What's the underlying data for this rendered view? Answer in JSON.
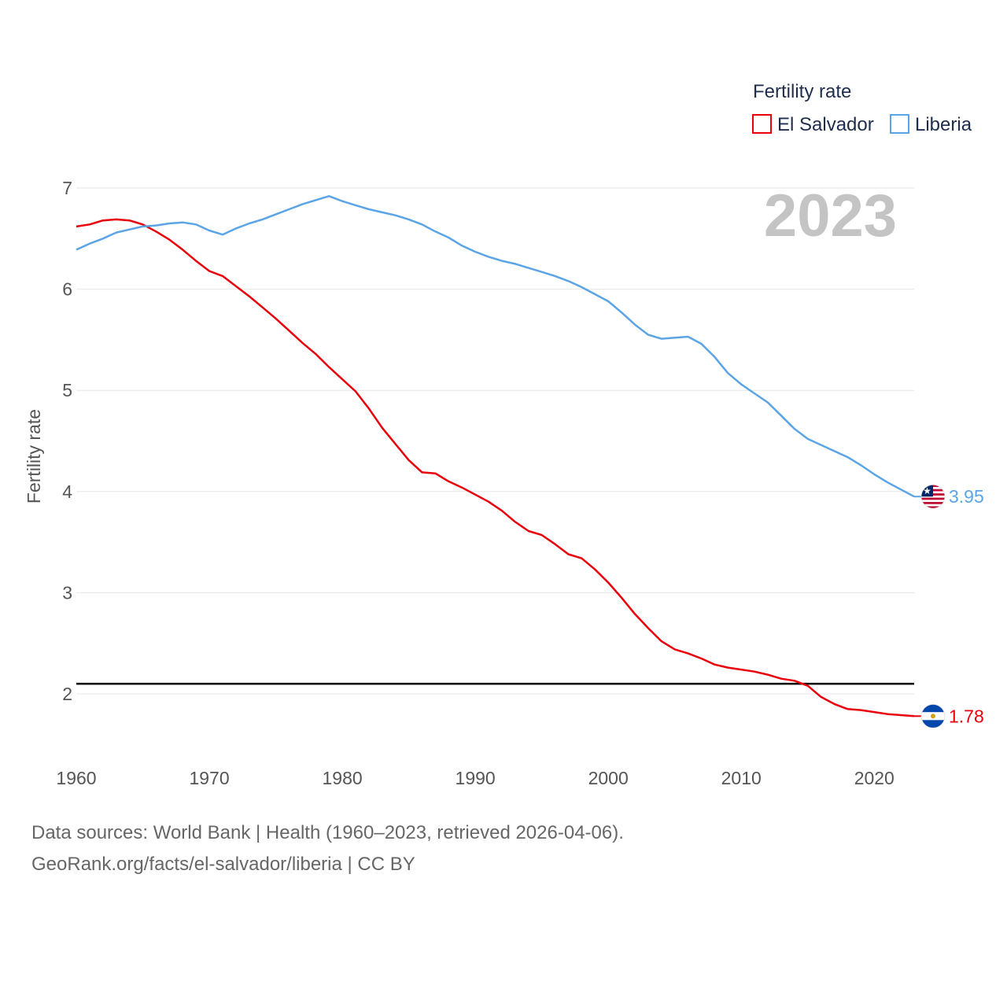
{
  "chart_data": {
    "type": "line",
    "title": "",
    "xlabel": "",
    "ylabel": "Fertility rate",
    "xlim": [
      1960,
      2023
    ],
    "ylim": [
      1.5,
      7
    ],
    "x_ticks": [
      1960,
      1970,
      1980,
      1990,
      2000,
      2010,
      2020
    ],
    "y_ticks": [
      2,
      3,
      4,
      5,
      6,
      7
    ],
    "grid": true,
    "legend_title": "Fertility rate",
    "legend_position": "top-right",
    "current_year": "2023",
    "reference_line": 2.1,
    "x": [
      1960,
      1961,
      1962,
      1963,
      1964,
      1965,
      1966,
      1967,
      1968,
      1969,
      1970,
      1971,
      1972,
      1973,
      1974,
      1975,
      1976,
      1977,
      1978,
      1979,
      1980,
      1981,
      1982,
      1983,
      1984,
      1985,
      1986,
      1987,
      1988,
      1989,
      1990,
      1991,
      1992,
      1993,
      1994,
      1995,
      1996,
      1997,
      1998,
      1999,
      2000,
      2001,
      2002,
      2003,
      2004,
      2005,
      2006,
      2007,
      2008,
      2009,
      2010,
      2011,
      2012,
      2013,
      2014,
      2015,
      2016,
      2017,
      2018,
      2019,
      2020,
      2021,
      2022,
      2023
    ],
    "series": [
      {
        "name": "El Salvador",
        "color": "#e8000b",
        "end_label": "1.78",
        "flag": "el-salvador-flag-icon",
        "values": [
          6.62,
          6.64,
          6.68,
          6.69,
          6.68,
          6.64,
          6.57,
          6.49,
          6.39,
          6.28,
          6.18,
          6.13,
          6.03,
          5.93,
          5.82,
          5.71,
          5.59,
          5.47,
          5.36,
          5.23,
          5.11,
          4.99,
          4.82,
          4.63,
          4.47,
          4.31,
          4.19,
          4.18,
          4.1,
          4.04,
          3.97,
          3.9,
          3.81,
          3.7,
          3.61,
          3.57,
          3.48,
          3.38,
          3.34,
          3.23,
          3.1,
          2.95,
          2.79,
          2.65,
          2.52,
          2.44,
          2.4,
          2.35,
          2.29,
          2.26,
          2.24,
          2.22,
          2.19,
          2.15,
          2.13,
          2.08,
          1.97,
          1.9,
          1.85,
          1.84,
          1.82,
          1.8,
          1.79,
          1.78
        ]
      },
      {
        "name": "Liberia",
        "color": "#5ba4e5",
        "end_label": "3.95",
        "flag": "liberia-flag-icon",
        "values": [
          6.39,
          6.45,
          6.5,
          6.56,
          6.59,
          6.62,
          6.63,
          6.65,
          6.66,
          6.64,
          6.58,
          6.54,
          6.6,
          6.65,
          6.69,
          6.74,
          6.79,
          6.84,
          6.88,
          6.92,
          6.87,
          6.83,
          6.79,
          6.76,
          6.73,
          6.69,
          6.64,
          6.57,
          6.51,
          6.43,
          6.37,
          6.32,
          6.28,
          6.25,
          6.21,
          6.17,
          6.13,
          6.08,
          6.02,
          5.95,
          5.88,
          5.77,
          5.65,
          5.55,
          5.51,
          5.52,
          5.53,
          5.46,
          5.33,
          5.17,
          5.06,
          4.97,
          4.88,
          4.75,
          4.62,
          4.52,
          4.46,
          4.4,
          4.34,
          4.26,
          4.17,
          4.09,
          4.02,
          3.95
        ]
      }
    ]
  },
  "footer": {
    "line1": "Data sources: World Bank | Health (1960–2023, retrieved 2026-04-06).",
    "line2": "GeoRank.org/facts/el-salvador/liberia | CC BY"
  }
}
